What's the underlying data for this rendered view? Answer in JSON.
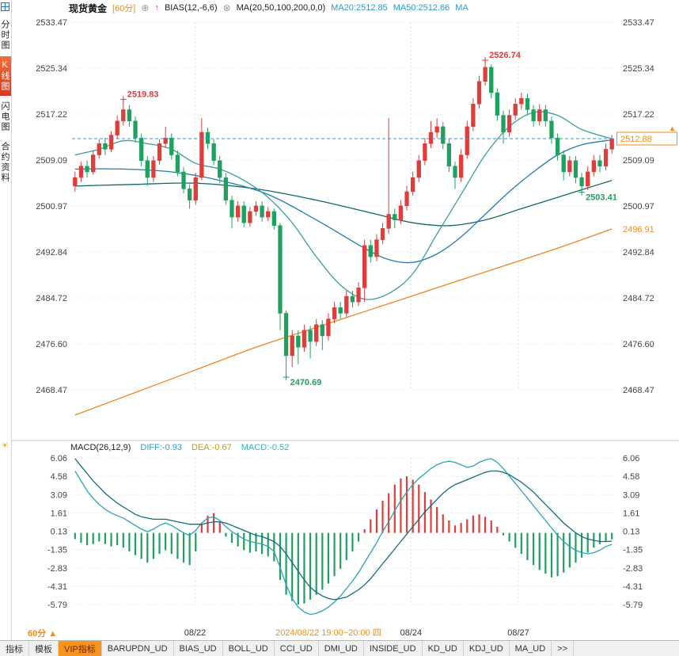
{
  "header": {
    "symbol": "现货黄金",
    "timeframe": "[60分]",
    "bias_label": "BIAS(12,-6,6)",
    "ma_label": "MA(20,50,100,200,0,0)",
    "ma20": "MA20:2512.85",
    "ma50": "MA50:2512.66",
    "ma_extra": "MA"
  },
  "icons": {
    "add_indicator": "⊕",
    "remove_indicator": "⊗",
    "up_arrow": "↑",
    "panel_settings": "☀",
    "timeframe_marker": "▲",
    "price_marker": "▲"
  },
  "sidebar": {
    "items": [
      {
        "label": "分时图",
        "selected": false
      },
      {
        "label": "K线图",
        "selected": true
      },
      {
        "label": "闪电图",
        "selected": false
      },
      {
        "label": "合约资料",
        "selected": false
      }
    ]
  },
  "macd_header": {
    "title": "MACD(26,12,9)",
    "diff": "DIFF:-0.93",
    "dea": "DEA:-0.67",
    "macd": "MACD:-0.52"
  },
  "footer": {
    "timeframe_label": "60分",
    "tabs": [
      "指标",
      "模板",
      "VIP指标",
      "BARUPDN_UD",
      "BIAS_UD",
      "BOLL_UD",
      "CCI_UD",
      "DMI_UD",
      "INSIDE_UD",
      "KD_UD",
      "KDJ_UD",
      "MA_UD",
      ">>"
    ],
    "selected_tab": "VIP指标"
  },
  "colors": {
    "up": "#e03c3c",
    "down": "#1fa05f",
    "orange": "#f08c1e",
    "price_line": "#3f8fd2",
    "grid": "#e4e4e4",
    "axis_text": "#444444",
    "diff_line": "#28a5b5",
    "dea_line": "#186a80"
  },
  "chart_data": {
    "type": "candlestick+macd",
    "main": {
      "title": "现货黄金 60分 K线",
      "y_ticks": [
        2533.47,
        2525.34,
        2517.22,
        2509.09,
        2500.97,
        2492.84,
        2484.72,
        2476.6,
        2468.47
      ],
      "current_price": 2512.88,
      "ma200_price": 2496.91,
      "candles": [
        [
          2504.5,
          2507,
          2503.5,
          2506
        ],
        [
          2506,
          2508.8,
          2505.2,
          2508
        ],
        [
          2508,
          2509,
          2506,
          2507
        ],
        [
          2507,
          2510.8,
          2506.5,
          2510
        ],
        [
          2510,
          2512.8,
          2509.3,
          2512
        ],
        [
          2512,
          2513,
          2510,
          2511
        ],
        [
          2511,
          2514.2,
          2510.5,
          2513.5
        ],
        [
          2513.5,
          2517,
          2512.8,
          2516
        ],
        [
          2516,
          2519.83,
          2515.2,
          2518
        ],
        [
          2518,
          2518.8,
          2515,
          2516
        ],
        [
          2516,
          2516.8,
          2512.2,
          2513
        ],
        [
          2513,
          2513.8,
          2508,
          2509
        ],
        [
          2509,
          2509.8,
          2504.5,
          2506
        ],
        [
          2506,
          2509.8,
          2505.2,
          2509
        ],
        [
          2509,
          2512.8,
          2508.3,
          2512
        ],
        [
          2512,
          2515,
          2511.2,
          2513
        ],
        [
          2513,
          2513.8,
          2509.2,
          2510
        ],
        [
          2510,
          2510.8,
          2506.2,
          2507
        ],
        [
          2507,
          2507.8,
          2503.2,
          2504
        ],
        [
          2504,
          2504.8,
          2500.5,
          2502
        ],
        [
          2502,
          2506.8,
          2501.2,
          2506
        ],
        [
          2506,
          2516.5,
          2505.5,
          2514
        ],
        [
          2514,
          2514.8,
          2511,
          2512
        ],
        [
          2512,
          2512.8,
          2508.2,
          2509
        ],
        [
          2509,
          2509.8,
          2505,
          2506
        ],
        [
          2506,
          2506.8,
          2501.2,
          2502
        ],
        [
          2502,
          2502.8,
          2497,
          2499
        ],
        [
          2499,
          2501.8,
          2498.2,
          2501
        ],
        [
          2501,
          2501.8,
          2497.2,
          2498
        ],
        [
          2498,
          2500.8,
          2497.3,
          2500
        ],
        [
          2500,
          2501.8,
          2499.2,
          2501
        ],
        [
          2501,
          2501.8,
          2498.2,
          2499
        ],
        [
          2499,
          2500.8,
          2498.3,
          2500
        ],
        [
          2500,
          2500.5,
          2496.8,
          2497.5
        ],
        [
          2497.5,
          2498,
          2479,
          2482
        ],
        [
          2482,
          2482.5,
          2470.69,
          2474.5
        ],
        [
          2474.5,
          2479,
          2472.5,
          2478
        ],
        [
          2478,
          2479,
          2473,
          2476
        ],
        [
          2476,
          2480,
          2475.2,
          2479
        ],
        [
          2479,
          2479.8,
          2474,
          2477
        ],
        [
          2477,
          2481,
          2476.2,
          2480
        ],
        [
          2480,
          2480.8,
          2475.5,
          2478
        ],
        [
          2478,
          2482,
          2477.2,
          2481
        ],
        [
          2481,
          2484,
          2480.2,
          2483
        ],
        [
          2483,
          2484,
          2481,
          2482
        ],
        [
          2482,
          2486,
          2481.3,
          2485
        ],
        [
          2485,
          2486,
          2483,
          2484
        ],
        [
          2484,
          2487.5,
          2483.3,
          2486.5
        ],
        [
          2486.5,
          2495,
          2484,
          2494
        ],
        [
          2494,
          2495,
          2491,
          2492
        ],
        [
          2492,
          2496,
          2491.2,
          2495
        ],
        [
          2495,
          2498,
          2494.2,
          2497
        ],
        [
          2497,
          2516.5,
          2496,
          2499.5
        ],
        [
          2499.5,
          2500.5,
          2497,
          2498.5
        ],
        [
          2498.5,
          2502,
          2497.8,
          2501
        ],
        [
          2501,
          2504.5,
          2500.2,
          2503.5
        ],
        [
          2503.5,
          2507,
          2502.8,
          2506
        ],
        [
          2506,
          2510,
          2505.2,
          2509
        ],
        [
          2509,
          2513,
          2508.2,
          2512
        ],
        [
          2512,
          2516,
          2511.2,
          2514
        ],
        [
          2514,
          2516.5,
          2513,
          2515
        ],
        [
          2515,
          2515.8,
          2511,
          2512
        ],
        [
          2512,
          2512.8,
          2507,
          2508
        ],
        [
          2508,
          2508.8,
          2504,
          2506
        ],
        [
          2506,
          2511,
          2505.2,
          2510
        ],
        [
          2510,
          2516,
          2509.3,
          2515
        ],
        [
          2515,
          2520,
          2514.2,
          2519
        ],
        [
          2519,
          2524,
          2518.2,
          2523
        ],
        [
          2523,
          2526.74,
          2522.3,
          2525.5
        ],
        [
          2525.5,
          2526,
          2520,
          2521
        ],
        [
          2521,
          2521.8,
          2516,
          2517
        ],
        [
          2517,
          2517.8,
          2512,
          2514
        ],
        [
          2514,
          2518,
          2513.2,
          2517
        ],
        [
          2517,
          2520,
          2516.2,
          2519
        ],
        [
          2519,
          2521,
          2518,
          2520
        ],
        [
          2520,
          2520.8,
          2517,
          2518
        ],
        [
          2518,
          2518.8,
          2515,
          2516
        ],
        [
          2516,
          2519,
          2515.2,
          2518
        ],
        [
          2518,
          2518.8,
          2515,
          2516
        ],
        [
          2516,
          2516.8,
          2512,
          2513
        ],
        [
          2513,
          2513.8,
          2509,
          2510
        ],
        [
          2510,
          2510.8,
          2505.5,
          2507
        ],
        [
          2507,
          2509.8,
          2506.2,
          2509
        ],
        [
          2509,
          2509.8,
          2505,
          2506
        ],
        [
          2506,
          2506.8,
          2503.41,
          2504.5
        ],
        [
          2504.5,
          2508,
          2503.8,
          2507
        ],
        [
          2507,
          2510,
          2506.2,
          2509
        ],
        [
          2509,
          2510,
          2507,
          2508
        ],
        [
          2508,
          2512,
          2507.3,
          2511
        ],
        [
          2511,
          2513.5,
          2510.2,
          2512.88
        ]
      ],
      "ma_lines": [
        {
          "name": "MA200",
          "color": "#f08422",
          "points": [
            [
              0,
              2464
            ],
            [
              10,
              2468
            ],
            [
              20,
              2472
            ],
            [
              30,
              2476
            ],
            [
              40,
              2479.5
            ],
            [
              50,
              2483
            ],
            [
              60,
              2486.5
            ],
            [
              70,
              2490
            ],
            [
              80,
              2493.5
            ],
            [
              89,
              2496.91
            ]
          ]
        },
        {
          "name": "MA100",
          "color": "#116868",
          "points": [
            [
              0,
              2504.5
            ],
            [
              10,
              2504.8
            ],
            [
              20,
              2505
            ],
            [
              30,
              2504
            ],
            [
              40,
              2502
            ],
            [
              50,
              2499.5
            ],
            [
              56,
              2498
            ],
            [
              62,
              2497.5
            ],
            [
              68,
              2498.5
            ],
            [
              74,
              2500.5
            ],
            [
              80,
              2502.5
            ],
            [
              89,
              2505.5
            ]
          ]
        },
        {
          "name": "MA50",
          "color": "#1d7fae",
          "points": [
            [
              0,
              2507.5
            ],
            [
              8,
              2507.5
            ],
            [
              16,
              2507
            ],
            [
              24,
              2505.5
            ],
            [
              32,
              2503
            ],
            [
              40,
              2498.5
            ],
            [
              48,
              2493.5
            ],
            [
              52,
              2491.5
            ],
            [
              56,
              2491
            ],
            [
              60,
              2492.5
            ],
            [
              64,
              2495.5
            ],
            [
              68,
              2499.5
            ],
            [
              72,
              2503.5
            ],
            [
              76,
              2507
            ],
            [
              80,
              2510
            ],
            [
              84,
              2511.8
            ],
            [
              89,
              2512.66
            ]
          ]
        },
        {
          "name": "MA20",
          "color": "#3aa0a0",
          "points": [
            [
              0,
              2510
            ],
            [
              4,
              2511
            ],
            [
              8,
              2512.5
            ],
            [
              12,
              2512
            ],
            [
              16,
              2511
            ],
            [
              20,
              2508.5
            ],
            [
              24,
              2507.5
            ],
            [
              28,
              2505.5
            ],
            [
              32,
              2502.5
            ],
            [
              36,
              2498
            ],
            [
              40,
              2492
            ],
            [
              44,
              2487
            ],
            [
              48,
              2484.5
            ],
            [
              52,
              2485.5
            ],
            [
              56,
              2489
            ],
            [
              60,
              2496
            ],
            [
              64,
              2503
            ],
            [
              68,
              2510
            ],
            [
              72,
              2515
            ],
            [
              76,
              2517.5
            ],
            [
              80,
              2517
            ],
            [
              84,
              2514.5
            ],
            [
              89,
              2512.85
            ]
          ]
        }
      ],
      "annotations": [
        {
          "text": "2519.83",
          "i": 8,
          "price": 2519.83,
          "color": "#e03c3c",
          "dy": -3
        },
        {
          "text": "2526.74",
          "i": 68,
          "price": 2526.74,
          "color": "#e03c3c",
          "dy": -3
        },
        {
          "text": "2470.69",
          "i": 35,
          "price": 2470.69,
          "color": "#1fa05f",
          "dy": 10
        },
        {
          "text": "2503.41",
          "i": 84,
          "price": 2503.41,
          "color": "#1fa05f",
          "dy": 10
        }
      ],
      "x_labels": [
        {
          "text": "08/22",
          "i": 19.9,
          "color": "#333333"
        },
        {
          "text": "2024/08/22 19:00~20:00 四",
          "i": 42,
          "color": "#f08c1e"
        },
        {
          "text": "08/24",
          "i": 55.7,
          "color": "#333333"
        },
        {
          "text": "08/27",
          "i": 73.5,
          "color": "#333333"
        }
      ],
      "x_gridlines": [
        19.9,
        55.7,
        73.5
      ]
    },
    "macd": {
      "title": "MACD(26,12,9)",
      "y_ticks": [
        6.06,
        4.58,
        3.09,
        1.61,
        0.13,
        -1.35,
        -2.83,
        -4.31,
        -5.79
      ],
      "diff_value": -0.93,
      "dea_value": -0.67,
      "macd_value": -0.52,
      "hist": [
        -0.5,
        -0.8,
        -1.0,
        -0.9,
        -0.7,
        -0.9,
        -1.1,
        -1.0,
        -1.2,
        -1.5,
        -1.8,
        -2.1,
        -2.4,
        -2.1,
        -1.7,
        -1.4,
        -1.7,
        -2.1,
        -2.4,
        -2.6,
        -1.5,
        0.7,
        1.4,
        1.6,
        0.9,
        -0.3,
        -0.8,
        -1.1,
        -1.4,
        -1.6,
        -1.5,
        -1.7,
        -1.9,
        -2.3,
        -3.8,
        -5.0,
        -5.5,
        -5.79,
        -5.7,
        -5.4,
        -5.0,
        -4.6,
        -4.1,
        -3.5,
        -2.9,
        -2.2,
        -1.5,
        -0.7,
        0.3,
        1.1,
        1.9,
        2.6,
        3.2,
        3.9,
        4.4,
        4.58,
        4.3,
        3.9,
        3.3,
        2.7,
        2.1,
        1.5,
        1.0,
        0.6,
        0.8,
        1.1,
        1.4,
        1.5,
        1.3,
        1.0,
        0.5,
        -0.2,
        -0.7,
        -1.2,
        -1.7,
        -2.2,
        -2.6,
        -3.0,
        -3.3,
        -3.6,
        -3.5,
        -3.2,
        -2.8,
        -2.4,
        -2.0,
        -1.6,
        -1.2,
        -0.9,
        -0.7,
        -0.52
      ],
      "diff": [
        5.0,
        4.2,
        3.4,
        2.8,
        2.3,
        1.9,
        1.6,
        1.4,
        1.2,
        0.9,
        0.6,
        0.3,
        0.1,
        0.3,
        0.6,
        0.8,
        0.6,
        0.3,
        0.0,
        -0.2,
        0.2,
        0.8,
        1.2,
        1.3,
        1.0,
        0.5,
        0.1,
        -0.2,
        -0.5,
        -0.7,
        -0.8,
        -0.9,
        -1.1,
        -1.5,
        -2.8,
        -4.2,
        -5.3,
        -6.0,
        -6.4,
        -6.6,
        -6.5,
        -6.3,
        -6.0,
        -5.6,
        -5.1,
        -4.5,
        -3.9,
        -3.2,
        -2.4,
        -1.6,
        -0.8,
        0.1,
        0.9,
        1.8,
        2.6,
        3.3,
        3.9,
        4.4,
        4.8,
        5.2,
        5.5,
        5.7,
        5.8,
        5.7,
        5.5,
        5.3,
        5.4,
        5.7,
        5.9,
        6.0,
        5.7,
        5.2,
        4.6,
        4.0,
        3.4,
        2.8,
        2.2,
        1.6,
        1.0,
        0.4,
        -0.2,
        -0.7,
        -1.1,
        -1.4,
        -1.6,
        -1.7,
        -1.6,
        -1.4,
        -1.1,
        -0.93
      ],
      "dea": [
        6.0,
        5.4,
        4.8,
        4.2,
        3.7,
        3.2,
        2.8,
        2.4,
        2.1,
        1.8,
        1.5,
        1.3,
        1.2,
        1.1,
        1.1,
        1.1,
        1.0,
        0.9,
        0.8,
        0.7,
        0.7,
        0.7,
        0.8,
        0.9,
        0.9,
        0.8,
        0.6,
        0.4,
        0.2,
        0.0,
        -0.2,
        -0.3,
        -0.5,
        -0.7,
        -1.1,
        -1.7,
        -2.4,
        -3.1,
        -3.8,
        -4.4,
        -4.8,
        -5.1,
        -5.3,
        -5.4,
        -5.3,
        -5.2,
        -4.9,
        -4.6,
        -4.2,
        -3.7,
        -3.1,
        -2.5,
        -1.9,
        -1.3,
        -0.7,
        -0.1,
        0.5,
        1.1,
        1.7,
        2.2,
        2.7,
        3.2,
        3.6,
        3.9,
        4.1,
        4.3,
        4.5,
        4.7,
        4.9,
        5.0,
        5.0,
        4.9,
        4.7,
        4.4,
        4.1,
        3.7,
        3.3,
        2.8,
        2.3,
        1.8,
        1.3,
        0.8,
        0.4,
        0.0,
        -0.3,
        -0.5,
        -0.6,
        -0.7,
        -0.7,
        -0.67
      ]
    }
  }
}
